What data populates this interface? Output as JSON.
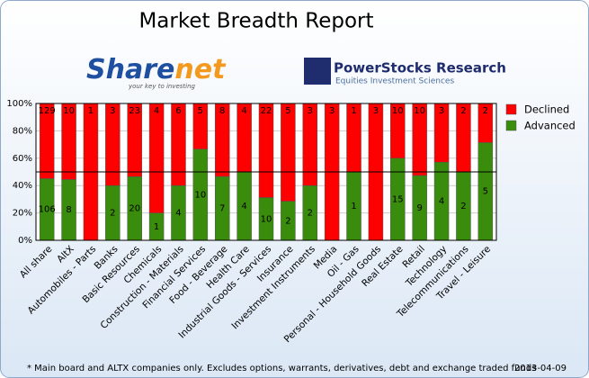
{
  "chart_data": {
    "type": "stacked_percent_bar",
    "title": "Market Breadth Report",
    "sharenet_logo": {
      "part_1": "Share",
      "part_2": "net",
      "tagline": "your key to investing"
    },
    "powerstocks_logo": {
      "name": "PowerStocks  Research",
      "tagline": "Equities Investment Sciences"
    },
    "categories": [
      "All share",
      "AltX",
      "Automobiles - Parts",
      "Banks",
      "Basic Resources",
      "Chemicals",
      "Construction - Materials",
      "Financial Services",
      "Food - Beverage",
      "Health Care",
      "Industrial Goods - Services",
      "Insurance",
      "Investment Instruments",
      "Media",
      "Oil - Gas",
      "Personal - Household Goods",
      "Real Estate",
      "Retail",
      "Technology",
      "Telecommunications",
      "Travel - Leisure"
    ],
    "series": [
      {
        "name": "Advanced",
        "color": "#3a8c0c",
        "values": [
          106,
          8,
          0,
          2,
          20,
          1,
          4,
          10,
          7,
          4,
          10,
          2,
          2,
          0,
          1,
          0,
          15,
          9,
          4,
          2,
          5
        ]
      },
      {
        "name": "Declined",
        "color": "#ff0000",
        "values": [
          129,
          10,
          1,
          3,
          23,
          4,
          6,
          5,
          8,
          4,
          22,
          5,
          3,
          3,
          1,
          3,
          10,
          10,
          3,
          2,
          2
        ]
      }
    ],
    "ylim": [
      0,
      100
    ],
    "yticks": [
      {
        "value": 0,
        "label": "0%"
      },
      {
        "value": 20,
        "label": "20%"
      },
      {
        "value": 40,
        "label": "40%"
      },
      {
        "value": 60,
        "label": "60%"
      },
      {
        "value": 80,
        "label": "80%"
      },
      {
        "value": 100,
        "label": "100%"
      }
    ],
    "reference_line": 50,
    "grid": true,
    "legend": "right",
    "footnote": "* Main board and ALTX companies only. Excludes options, warrants, derivatives, debt and exchange traded funds",
    "date": "2013-04-09"
  }
}
